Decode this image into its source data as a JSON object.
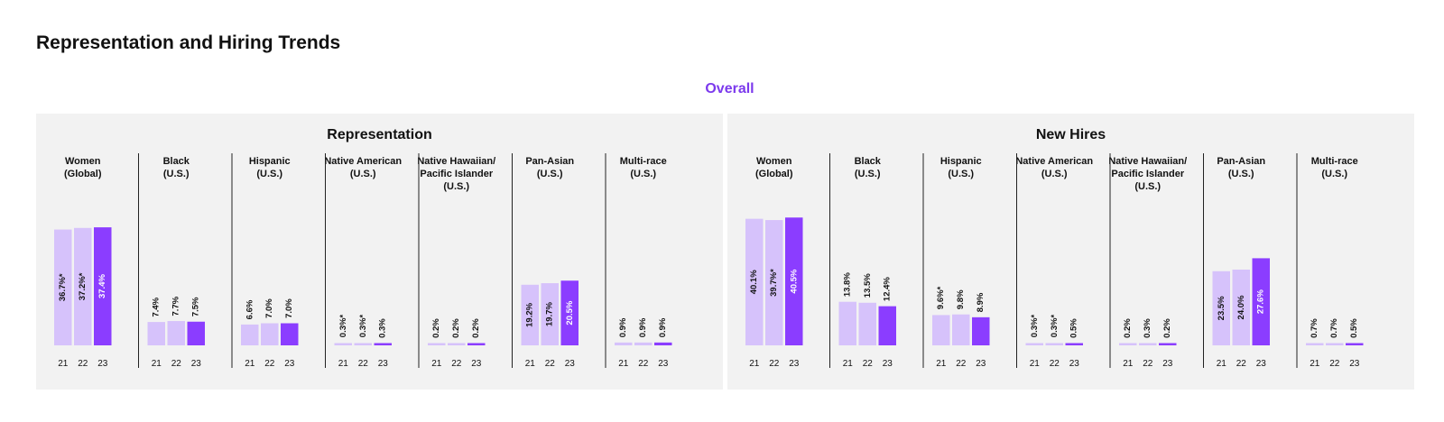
{
  "page": {
    "title": "Representation and Hiring Trends",
    "subtitle": "Overall"
  },
  "colors": {
    "accent": "#7c3aed",
    "bar_prior": "#d6c2fb",
    "bar_current": "#8b3dff",
    "panel_bg": "#f2f2f2",
    "divider": "#222222"
  },
  "chart_data": [
    {
      "type": "bar",
      "title": "Representation",
      "tick_labels": [
        "21",
        "22",
        "23"
      ],
      "groups": [
        {
          "label": [
            "Women",
            "(Global)"
          ],
          "values": [
            36.7,
            37.2,
            37.4
          ],
          "labels": [
            "36.7%*",
            "37.2%*",
            "37.4%"
          ]
        },
        {
          "label": [
            "Black",
            "(U.S.)"
          ],
          "values": [
            7.4,
            7.7,
            7.5
          ],
          "labels": [
            "7.4%",
            "7.7%",
            "7.5%"
          ]
        },
        {
          "label": [
            "Hispanic",
            "(U.S.)"
          ],
          "values": [
            6.6,
            7.0,
            7.0
          ],
          "labels": [
            "6.6%",
            "7.0%",
            "7.0%"
          ]
        },
        {
          "label": [
            "Native American",
            "(U.S.)"
          ],
          "values": [
            0.3,
            0.3,
            0.3
          ],
          "labels": [
            "0.3%*",
            "0.3%*",
            "0.3%"
          ]
        },
        {
          "label": [
            "Native Hawaiian/",
            "Pacific Islander",
            "(U.S.)"
          ],
          "values": [
            0.2,
            0.2,
            0.2
          ],
          "labels": [
            "0.2%",
            "0.2%",
            "0.2%"
          ]
        },
        {
          "label": [
            "Pan-Asian",
            "(U.S.)"
          ],
          "values": [
            19.2,
            19.7,
            20.5
          ],
          "labels": [
            "19.2%",
            "19.7%",
            "20.5%"
          ]
        },
        {
          "label": [
            "Multi-race",
            "(U.S.)"
          ],
          "values": [
            0.9,
            0.9,
            0.9
          ],
          "labels": [
            "0.9%",
            "0.9%",
            "0.9%"
          ]
        }
      ]
    },
    {
      "type": "bar",
      "title": "New Hires",
      "tick_labels": [
        "21",
        "22",
        "23"
      ],
      "groups": [
        {
          "label": [
            "Women",
            "(Global)"
          ],
          "values": [
            40.1,
            39.7,
            40.5
          ],
          "labels": [
            "40.1%",
            "39.7%*",
            "40.5%"
          ]
        },
        {
          "label": [
            "Black",
            "(U.S.)"
          ],
          "values": [
            13.8,
            13.5,
            12.4
          ],
          "labels": [
            "13.8%",
            "13.5%",
            "12.4%"
          ]
        },
        {
          "label": [
            "Hispanic",
            "(U.S.)"
          ],
          "values": [
            9.6,
            9.8,
            8.9
          ],
          "labels": [
            "9.6%*",
            "9.8%",
            "8.9%"
          ]
        },
        {
          "label": [
            "Native American",
            "(U.S.)"
          ],
          "values": [
            0.3,
            0.3,
            0.5
          ],
          "labels": [
            "0.3%*",
            "0.3%*",
            "0.5%"
          ]
        },
        {
          "label": [
            "Native Hawaiian/",
            "Pacific Islander",
            "(U.S.)"
          ],
          "values": [
            0.2,
            0.3,
            0.2
          ],
          "labels": [
            "0.2%",
            "0.3%",
            "0.2%"
          ]
        },
        {
          "label": [
            "Pan-Asian",
            "(U.S.)"
          ],
          "values": [
            23.5,
            24.0,
            27.6
          ],
          "labels": [
            "23.5%",
            "24.0%",
            "27.6%"
          ]
        },
        {
          "label": [
            "Multi-race",
            "(U.S.)"
          ],
          "values": [
            0.7,
            0.7,
            0.5
          ],
          "labels": [
            "0.7%",
            "0.7%",
            "0.5%"
          ]
        }
      ]
    }
  ]
}
